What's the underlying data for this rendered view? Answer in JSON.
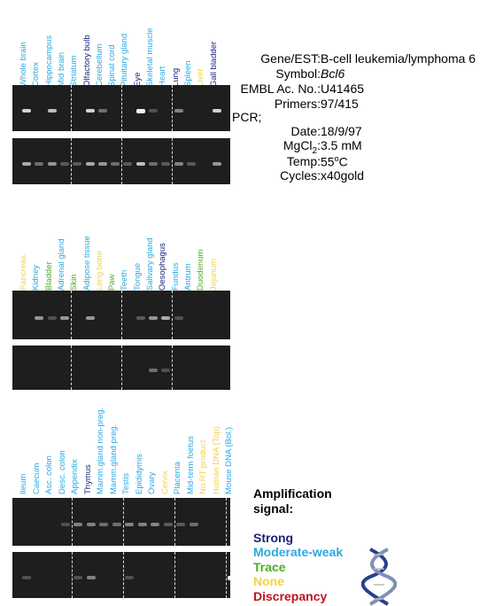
{
  "colors": {
    "strong": "#1a237e",
    "moderate_weak": "#29a9e1",
    "trace": "#4caf1f",
    "none": "#f2d24b",
    "discrepancy": "#c1121f",
    "gel_bg": "#1e1e1e"
  },
  "meta": {
    "gene_label": "Gene/EST:",
    "gene_value": "B-cell leukemia/lymphoma 6",
    "symbol_label": "Symbol:",
    "symbol_value": "Bcl6",
    "embl_label": "EMBL Ac. No.:",
    "embl_value": "U41465",
    "primers_label": "Primers:",
    "primers_value": "97/415",
    "pcr_label": "PCR;",
    "date_label": "Date:",
    "date_value": "18/9/97",
    "mgcl_label": "MgCl",
    "mgcl_sub": "2",
    "mgcl_tail": ":",
    "mgcl_value": "3.5 mM",
    "temp_label": "Temp:",
    "temp_value": "55",
    "temp_sup": "o",
    "temp_unit": "C",
    "cycles_label": "Cycles:",
    "cycles_value": "x40gold"
  },
  "legend": {
    "title_line1": "Amplification",
    "title_line2": "signal:",
    "strong": "Strong",
    "moderate_weak": "Moderate-weak",
    "trace": "Trace",
    "none": "None",
    "discrepancy": "Discrepancy"
  },
  "panels": [
    {
      "lanes": [
        {
          "label": "Whole brain",
          "level": "moderate_weak",
          "b1": 0.9,
          "b2": 0.7
        },
        {
          "label": "Cortex",
          "level": "moderate_weak",
          "b1": 0.0,
          "b2": 0.4
        },
        {
          "label": "Hippocampus",
          "level": "moderate_weak",
          "b1": 0.8,
          "b2": 0.6
        },
        {
          "label": "Mid brain",
          "level": "moderate_weak",
          "b1": 0.0,
          "b2": 0.3
        },
        {
          "label": "Striatum",
          "level": "moderate_weak",
          "b1": 0.0,
          "b2": 0.3
        },
        {
          "label": "Olfactory bulb",
          "level": "strong",
          "b1": 0.9,
          "b2": 0.7
        },
        {
          "label": "Cerebellum",
          "level": "moderate_weak",
          "b1": 0.4,
          "b2": 0.6
        },
        {
          "label": "Spinal cord",
          "level": "moderate_weak",
          "b1": 0.0,
          "b2": 0.4
        },
        {
          "label": "Pituitary gland",
          "level": "moderate_weak",
          "b1": 0.0,
          "b2": 0.3
        },
        {
          "label": "Eye",
          "level": "strong",
          "b1": 0.95,
          "b2": 0.8
        },
        {
          "label": "Skeletal muscle",
          "level": "moderate_weak",
          "b1": 0.2,
          "b2": 0.4
        },
        {
          "label": "Heart",
          "level": "moderate_weak",
          "b1": 0.0,
          "b2": 0.3
        },
        {
          "label": "Lung",
          "level": "strong",
          "b1": 0.5,
          "b2": 0.5
        },
        {
          "label": "Spleen",
          "level": "moderate_weak",
          "b1": 0.0,
          "b2": 0.3
        },
        {
          "label": "Liver",
          "level": "none",
          "b1": 0.0,
          "b2": 0.0
        },
        {
          "label": "Gall bladder",
          "level": "strong",
          "b1": 0.9,
          "b2": 0.6
        }
      ]
    },
    {
      "lanes": [
        {
          "label": "Pancreas",
          "level": "none",
          "b1": 0.0,
          "b2": 0.0
        },
        {
          "label": "Kidney",
          "level": "moderate_weak",
          "b1": 0.6,
          "b2": 0.0
        },
        {
          "label": "Bladder",
          "level": "trace",
          "b1": 0.2,
          "b2": 0.0
        },
        {
          "label": "Adrenal gland",
          "level": "moderate_weak",
          "b1": 0.6,
          "b2": 0.0
        },
        {
          "label": "Skin",
          "level": "trace",
          "b1": 0.0,
          "b2": 0.0
        },
        {
          "label": "Adipose tissue",
          "level": "moderate_weak",
          "b1": 0.6,
          "b2": 0.0
        },
        {
          "label": "Long bone",
          "level": "none",
          "b1": 0.0,
          "b2": 0.0
        },
        {
          "label": "Paw",
          "level": "trace",
          "b1": 0.0,
          "b2": 0.0
        },
        {
          "label": "Teeth",
          "level": "moderate_weak",
          "b1": 0.0,
          "b2": 0.0
        },
        {
          "label": "Tongue",
          "level": "moderate_weak",
          "b1": 0.3,
          "b2": 0.0
        },
        {
          "label": "Salivary gland",
          "level": "moderate_weak",
          "b1": 0.6,
          "b2": 0.4
        },
        {
          "label": "Oesophagus",
          "level": "strong",
          "b1": 0.7,
          "b2": 0.2
        },
        {
          "label": "Fundus",
          "level": "moderate_weak",
          "b1": 0.2,
          "b2": 0.0
        },
        {
          "label": "Antrum",
          "level": "moderate_weak",
          "b1": 0.0,
          "b2": 0.0
        },
        {
          "label": "Duodenum",
          "level": "trace",
          "b1": 0.0,
          "b2": 0.0
        },
        {
          "label": "Jejunum",
          "level": "none",
          "b1": 0.0,
          "b2": 0.0
        }
      ]
    },
    {
      "lanes": [
        {
          "label": "Ileum",
          "level": "moderate_weak",
          "b1": 0.0,
          "b2": 0.2
        },
        {
          "label": "Caecum",
          "level": "moderate_weak",
          "b1": 0.0,
          "b2": 0.0
        },
        {
          "label": "Asc. colon",
          "level": "moderate_weak",
          "b1": 0.0,
          "b2": 0.0
        },
        {
          "label": "Desc. colon",
          "level": "moderate_weak",
          "b1": 0.2,
          "b2": 0.0
        },
        {
          "label": "Appendix",
          "level": "moderate_weak",
          "b1": 0.5,
          "b2": 0.2
        },
        {
          "label": "Thymus",
          "level": "strong",
          "b1": 0.5,
          "b2": 0.5
        },
        {
          "label": "Mamm.gland non-preg.",
          "level": "moderate_weak",
          "b1": 0.4,
          "b2": 0.0
        },
        {
          "label": "Mamm.gland preg.",
          "level": "moderate_weak",
          "b1": 0.4,
          "b2": 0.0
        },
        {
          "label": "Testis",
          "level": "moderate_weak",
          "b1": 0.5,
          "b2": 0.2
        },
        {
          "label": "Epididymis",
          "level": "moderate_weak",
          "b1": 0.5,
          "b2": 0.0
        },
        {
          "label": "Ovary",
          "level": "moderate_weak",
          "b1": 0.5,
          "b2": 0.0
        },
        {
          "label": "Cervix",
          "level": "none",
          "b1": 0.3,
          "b2": 0.0
        },
        {
          "label": "Placenta",
          "level": "moderate_weak",
          "b1": 0.3,
          "b2": 0.0
        },
        {
          "label": "Mid-term foetus",
          "level": "moderate_weak",
          "b1": 0.4,
          "b2": 0.0
        },
        {
          "label": "No RT product",
          "level": "none",
          "b1": 0.0,
          "b2": 0.0
        },
        {
          "label": "Human DNA (Top)",
          "level": "none",
          "b1": 0.0,
          "b2": 0.0
        },
        {
          "label": "Mouse DNA (Bol.)",
          "level": "moderate_weak",
          "b1": 0.0,
          "b2": 1.0
        }
      ]
    }
  ]
}
